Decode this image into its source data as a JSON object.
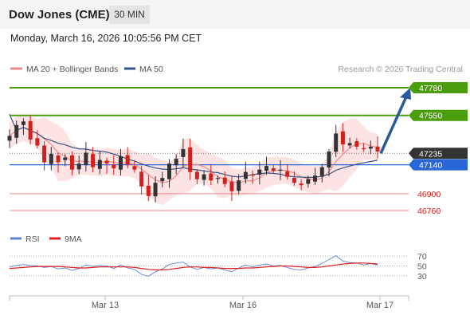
{
  "header": {
    "instrument": "Dow Jones (CME)",
    "timeframe": "30 MIN"
  },
  "datetime": "Monday, March 16, 2026 10:05:56 PM CET",
  "legend": {
    "ma20_bb": "MA 20 + Bollinger Bands",
    "ma50": "MA 50",
    "copyright": "Research © 2026 Trading Central",
    "rsi": "RSI",
    "rsi_ma": "9MA"
  },
  "colors": {
    "resistance": "#4a9e0c",
    "support": "#e98d8d",
    "pivot": "#2966d8",
    "last_price": "#333333",
    "arrow": "#2a5a9c",
    "ma20": "#f08a8a",
    "bollinger": "#fde3e3",
    "ma50": "#34558b",
    "rsi": "#5f83d6",
    "rsi_ma": "#e02020",
    "candle_up": "#333333",
    "candle_down": "#d0211c"
  },
  "chart_data": [
    {
      "type": "candlestick",
      "x_tick_labels": [
        "Mar 13",
        "Mar 16",
        "Mar 17"
      ],
      "ylim": [
        46700,
        47800
      ],
      "levels": [
        {
          "value": 47780,
          "label": "47780",
          "kind": "resistance"
        },
        {
          "value": 47550,
          "label": "47550",
          "kind": "resistance"
        },
        {
          "value": 47235,
          "label": "47235",
          "kind": "last_price"
        },
        {
          "value": 47140,
          "label": "47140",
          "kind": "pivot"
        },
        {
          "value": 46900,
          "label": "46900",
          "kind": "support"
        },
        {
          "value": 46760,
          "label": "46760",
          "kind": "support"
        }
      ],
      "arrow": {
        "from": 47235,
        "to": 47780,
        "direction": "up"
      },
      "close_path": [
        47380,
        47470,
        47500,
        47350,
        47300,
        47160,
        47230,
        47160,
        47200,
        47100,
        47150,
        47240,
        47120,
        47180,
        47150,
        47110,
        47210,
        47140,
        47100,
        46960,
        46880,
        46990,
        47030,
        47150,
        47190,
        47270,
        47080,
        47020,
        47060,
        47010,
        47030,
        46980,
        46920,
        47010,
        47080,
        47050,
        47100,
        47130,
        47090,
        47100,
        47040,
        46990,
        46970,
        47020,
        47050,
        47120,
        47250,
        47400,
        47310,
        47320,
        47290,
        47270,
        47290,
        47250
      ]
    },
    {
      "type": "line",
      "title": "RSI",
      "yticks": [
        70,
        50,
        30
      ],
      "ylim": [
        20,
        80
      ],
      "series": [
        {
          "name": "RSI",
          "values": [
            48,
            51,
            53,
            51,
            50,
            47,
            49,
            44,
            46,
            41,
            45,
            52,
            49,
            51,
            50,
            45,
            52,
            46,
            43,
            33,
            29,
            38,
            44,
            53,
            56,
            58,
            48,
            43,
            47,
            44,
            46,
            42,
            38,
            46,
            52,
            48,
            52,
            54,
            50,
            51,
            47,
            43,
            42,
            46,
            49,
            55,
            63,
            71,
            60,
            57,
            56,
            52,
            55,
            52
          ]
        },
        {
          "name": "9MA",
          "values": [
            45,
            46,
            47,
            48,
            49,
            49,
            49,
            49,
            48,
            47,
            46,
            46,
            47,
            48,
            48,
            48,
            48,
            48,
            47,
            45,
            43,
            42,
            42,
            43,
            45,
            47,
            48,
            48,
            47,
            47,
            46,
            45,
            45,
            45,
            46,
            46,
            47,
            48,
            49,
            50,
            50,
            49,
            48,
            47,
            47,
            48,
            50,
            52,
            54,
            55,
            56,
            56,
            55,
            54
          ]
        }
      ]
    }
  ]
}
